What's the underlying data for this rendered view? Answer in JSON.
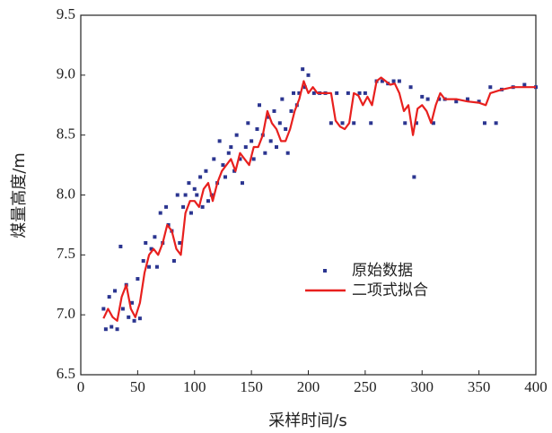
{
  "chart_data": {
    "type": "line",
    "x_label": "采样时间/s",
    "y_label": "煤量高度/m",
    "xlim": [
      0,
      400
    ],
    "xticks": [
      0,
      50,
      100,
      150,
      200,
      250,
      300,
      350,
      400
    ],
    "ylim": [
      6.5,
      9.5
    ],
    "yticks": [
      6.5,
      {
        "value": 7,
        "label": "7.0"
      },
      7.5,
      {
        "value": 8,
        "label": "8.0"
      },
      8.5,
      {
        "value": 9,
        "label": "9.0"
      },
      9.5
    ],
    "legend": "center right",
    "series": [
      {
        "name": "原始数据",
        "type": "scatter",
        "color": "#2b3590",
        "x": [
          20,
          22,
          25,
          27,
          30,
          32,
          35,
          37,
          40,
          42,
          45,
          47,
          50,
          52,
          55,
          57,
          60,
          62,
          65,
          67,
          70,
          72,
          75,
          77,
          80,
          82,
          85,
          87,
          90,
          92,
          95,
          97,
          100,
          102,
          105,
          107,
          110,
          112,
          115,
          117,
          120,
          122,
          125,
          127,
          130,
          132,
          135,
          137,
          140,
          142,
          145,
          147,
          150,
          152,
          155,
          157,
          160,
          162,
          165,
          167,
          170,
          172,
          175,
          177,
          180,
          182,
          185,
          187,
          190,
          192,
          195,
          197,
          200,
          205,
          210,
          215,
          220,
          225,
          230,
          235,
          240,
          245,
          250,
          255,
          260,
          265,
          270,
          275,
          280,
          285,
          290,
          293,
          295,
          300,
          305,
          310,
          315,
          320,
          330,
          340,
          350,
          355,
          360,
          365,
          370,
          380,
          390,
          400
        ],
        "values": [
          7.05,
          6.88,
          7.15,
          6.9,
          7.2,
          6.88,
          7.57,
          7.05,
          7.25,
          6.98,
          7.1,
          6.95,
          7.3,
          6.97,
          7.45,
          7.6,
          7.4,
          7.55,
          7.65,
          7.4,
          7.85,
          7.6,
          7.9,
          7.75,
          7.7,
          7.45,
          8.0,
          7.6,
          7.9,
          8.0,
          8.1,
          7.85,
          8.05,
          8.0,
          8.15,
          7.9,
          8.2,
          7.95,
          8.0,
          8.3,
          8.1,
          8.45,
          8.25,
          8.15,
          8.35,
          8.4,
          8.2,
          8.5,
          8.3,
          8.1,
          8.4,
          8.6,
          8.45,
          8.3,
          8.55,
          8.75,
          8.5,
          8.35,
          8.65,
          8.45,
          8.7,
          8.4,
          8.6,
          8.8,
          8.55,
          8.35,
          8.7,
          8.85,
          8.75,
          8.85,
          9.05,
          8.9,
          9.0,
          8.85,
          8.85,
          8.85,
          8.6,
          8.85,
          8.6,
          8.85,
          8.6,
          8.85,
          8.85,
          8.6,
          8.95,
          8.95,
          8.93,
          8.95,
          8.95,
          8.6,
          8.9,
          8.15,
          8.6,
          8.82,
          8.8,
          8.6,
          8.8,
          8.8,
          8.78,
          8.8,
          8.78,
          8.6,
          8.9,
          8.6,
          8.88,
          8.9,
          8.92,
          8.9
        ]
      },
      {
        "name": "二项式拟合",
        "type": "line",
        "color": "#e8201e",
        "x": [
          20,
          24,
          28,
          32,
          36,
          40,
          44,
          48,
          52,
          56,
          60,
          64,
          68,
          72,
          76,
          80,
          84,
          88,
          92,
          96,
          100,
          104,
          108,
          112,
          116,
          120,
          124,
          128,
          132,
          136,
          140,
          144,
          148,
          152,
          156,
          160,
          164,
          168,
          172,
          176,
          180,
          184,
          188,
          192,
          196,
          200,
          204,
          208,
          212,
          216,
          220,
          224,
          228,
          232,
          236,
          240,
          244,
          248,
          252,
          256,
          260,
          264,
          268,
          272,
          276,
          280,
          284,
          288,
          292,
          296,
          300,
          304,
          308,
          312,
          316,
          320,
          330,
          340,
          350,
          356,
          360,
          370,
          380,
          390,
          400
        ],
        "values": [
          6.97,
          7.05,
          6.98,
          6.95,
          7.15,
          7.25,
          7.05,
          6.98,
          7.1,
          7.35,
          7.5,
          7.55,
          7.5,
          7.6,
          7.75,
          7.7,
          7.55,
          7.5,
          7.85,
          7.95,
          7.95,
          7.9,
          8.05,
          8.1,
          7.95,
          8.1,
          8.2,
          8.25,
          8.3,
          8.2,
          8.35,
          8.3,
          8.25,
          8.4,
          8.4,
          8.5,
          8.7,
          8.6,
          8.55,
          8.45,
          8.45,
          8.55,
          8.7,
          8.8,
          8.95,
          8.85,
          8.9,
          8.85,
          8.85,
          8.85,
          8.85,
          8.62,
          8.57,
          8.55,
          8.6,
          8.85,
          8.83,
          8.75,
          8.82,
          8.75,
          8.95,
          8.98,
          8.95,
          8.92,
          8.93,
          8.85,
          8.7,
          8.75,
          8.5,
          8.72,
          8.75,
          8.7,
          8.6,
          8.75,
          8.85,
          8.8,
          8.8,
          8.78,
          8.77,
          8.75,
          8.85,
          8.88,
          8.9,
          8.9,
          8.9
        ]
      }
    ]
  }
}
